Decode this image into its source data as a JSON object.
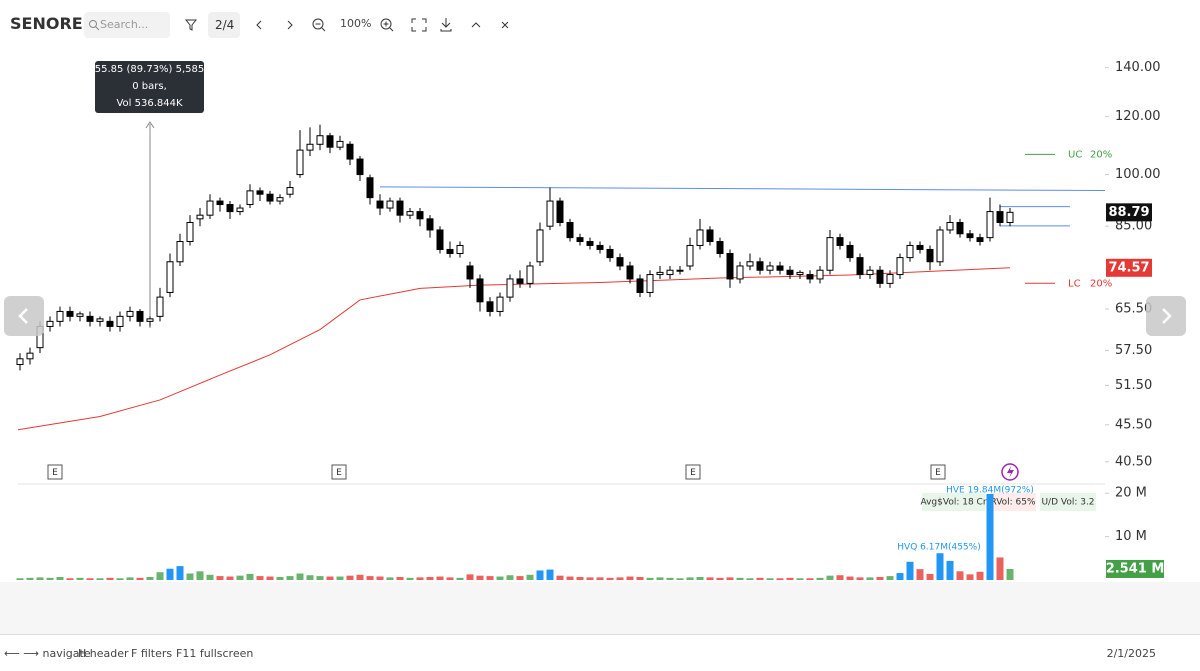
{
  "toolbar": {
    "title": "SENORES",
    "search_placeholder": "Search...",
    "page": "2/4",
    "zoom": "100%"
  },
  "chart_data": {
    "type": "candlestick",
    "log_scale": true,
    "ylim": [
      38,
      148
    ],
    "yticks": [
      {
        "value": 140,
        "label": "140.00"
      },
      {
        "value": 120,
        "label": "120.00"
      },
      {
        "value": 100,
        "label": "100.00"
      },
      {
        "value": 85,
        "label": "85.00"
      },
      {
        "value": 65.5,
        "label": "65.50"
      },
      {
        "value": 57.5,
        "label": "57.50"
      },
      {
        "value": 51.5,
        "label": "51.50"
      },
      {
        "value": 45.5,
        "label": "45.50"
      },
      {
        "value": 40.5,
        "label": "40.50"
      }
    ],
    "up_color": "#000000",
    "down_color": "#000000",
    "candles": [
      [
        55,
        57,
        54,
        56
      ],
      [
        56,
        58,
        55,
        57
      ],
      [
        58,
        63,
        57,
        62
      ],
      [
        62,
        64,
        61,
        63
      ],
      [
        63,
        66,
        62,
        65
      ],
      [
        65,
        66,
        63,
        64
      ],
      [
        64,
        65,
        63,
        64.5
      ],
      [
        64,
        65,
        62,
        63
      ],
      [
        63,
        64,
        62,
        63.5
      ],
      [
        63,
        64,
        61,
        62
      ],
      [
        62,
        65,
        61,
        64
      ],
      [
        64,
        66,
        63,
        65
      ],
      [
        65,
        65.5,
        62,
        63
      ],
      [
        63,
        64,
        62,
        63.5
      ],
      [
        64,
        70,
        63,
        68
      ],
      [
        69,
        78,
        68,
        76
      ],
      [
        76,
        83,
        75,
        81
      ],
      [
        81,
        88,
        80,
        86
      ],
      [
        87,
        90,
        85,
        88
      ],
      [
        88,
        94,
        87,
        92
      ],
      [
        92,
        93,
        89,
        91
      ],
      [
        91,
        92,
        87,
        89
      ],
      [
        89,
        91,
        88,
        90
      ],
      [
        91,
        97,
        90,
        95
      ],
      [
        95,
        96,
        92,
        94
      ],
      [
        94,
        95,
        91,
        92
      ],
      [
        92,
        94,
        91,
        93
      ],
      [
        94,
        98,
        93,
        96
      ],
      [
        100,
        115,
        99,
        108
      ],
      [
        108,
        116,
        106,
        110
      ],
      [
        110,
        117,
        108,
        113
      ],
      [
        113,
        114,
        107,
        109
      ],
      [
        109,
        113,
        108,
        111
      ],
      [
        110,
        111,
        103,
        105
      ],
      [
        105,
        106,
        98,
        100
      ],
      [
        99,
        100,
        91,
        93
      ],
      [
        92,
        94,
        88,
        90
      ],
      [
        90,
        93,
        89,
        92
      ],
      [
        92,
        93,
        86,
        88
      ],
      [
        88,
        90,
        87,
        89
      ],
      [
        89,
        90,
        85,
        87
      ],
      [
        87,
        88,
        82,
        84
      ],
      [
        84,
        85,
        78,
        79
      ],
      [
        79,
        81,
        77,
        78
      ],
      [
        78,
        81,
        77,
        80
      ],
      [
        75,
        76,
        70,
        72
      ],
      [
        72,
        73,
        65,
        67
      ],
      [
        67,
        68,
        64,
        65
      ],
      [
        65,
        69,
        64,
        68
      ],
      [
        68,
        73,
        67,
        72
      ],
      [
        72,
        74,
        70,
        71
      ],
      [
        71,
        76,
        70,
        75
      ],
      [
        76,
        86,
        75,
        84
      ],
      [
        85,
        96,
        84,
        92
      ],
      [
        92,
        93,
        85,
        86
      ],
      [
        86,
        87,
        81,
        82
      ],
      [
        82,
        83,
        80,
        81
      ],
      [
        81,
        82,
        79,
        80
      ],
      [
        80,
        81,
        78,
        79
      ],
      [
        79,
        80,
        76,
        77
      ],
      [
        77,
        78,
        74,
        75
      ],
      [
        75,
        76,
        71,
        72
      ],
      [
        72,
        73,
        68,
        69
      ],
      [
        69,
        74,
        68,
        73
      ],
      [
        73,
        75,
        72,
        73.5
      ],
      [
        73,
        75,
        72,
        74
      ],
      [
        74,
        75,
        73,
        74
      ],
      [
        75,
        82,
        74,
        80
      ],
      [
        80,
        87,
        79,
        84
      ],
      [
        84,
        85,
        80,
        81
      ],
      [
        81,
        82,
        77,
        78
      ],
      [
        78,
        79,
        70,
        72
      ],
      [
        72,
        76,
        71,
        75
      ],
      [
        75,
        78,
        74,
        76
      ],
      [
        76,
        77,
        73,
        74
      ],
      [
        74,
        76,
        73,
        75
      ],
      [
        75,
        76,
        73,
        74
      ],
      [
        74,
        75,
        72,
        73
      ],
      [
        73,
        74,
        72,
        73.5
      ],
      [
        73,
        74,
        71,
        72
      ],
      [
        72,
        75,
        71,
        74
      ],
      [
        74,
        84,
        73,
        82
      ],
      [
        82,
        83,
        79,
        80
      ],
      [
        80,
        81,
        76,
        77
      ],
      [
        77,
        78,
        72,
        73
      ],
      [
        73,
        75,
        72,
        74
      ],
      [
        74,
        75,
        70,
        71
      ],
      [
        71,
        74,
        70,
        73
      ],
      [
        73,
        78,
        72,
        77
      ],
      [
        77,
        81,
        76,
        80
      ],
      [
        80,
        81,
        78,
        79
      ],
      [
        79,
        80,
        74,
        76
      ],
      [
        76,
        85,
        75,
        84
      ],
      [
        84,
        88,
        83,
        86
      ],
      [
        86,
        87,
        82,
        83
      ],
      [
        83,
        84,
        81,
        82
      ],
      [
        82,
        83,
        80,
        81
      ],
      [
        82,
        93,
        81,
        89
      ],
      [
        89,
        91,
        85,
        86
      ],
      [
        86,
        90,
        85,
        88.79
      ]
    ],
    "ma": {
      "color": "#e53935",
      "x": [
        -0.2,
        8,
        14,
        20,
        25,
        30,
        34,
        40,
        46,
        58,
        70,
        83,
        99
      ],
      "values": [
        44.8,
        46.7,
        49.2,
        53.2,
        56.7,
        61.4,
        67.4,
        69.9,
        70.6,
        71.2,
        72.2,
        72.9,
        74.57
      ]
    },
    "trendline": {
      "color": "#5b8def",
      "x": [
        36,
        108.5
      ],
      "values": [
        96.2,
        95.1
      ]
    },
    "levels": [
      90.4,
      85.1
    ],
    "upper_circuit": {
      "label": "UC",
      "pct": "20%",
      "value": 106.55,
      "color": "#43a047"
    },
    "lower_circuit": {
      "label": "LC",
      "pct": "20%",
      "value": 71.03,
      "color": "#e53935"
    },
    "last_price": 88.79,
    "ma_price": 74.57,
    "earnings": {
      "x": [
        3.5,
        31.9,
        67.3,
        91.8
      ],
      "labels": [
        "E",
        "E",
        "E",
        "E"
      ]
    },
    "tooltip": {
      "lines": [
        "55.85 (89.73%) 5,585",
        "0 bars,",
        "Vol 536.844K"
      ]
    },
    "volume": {
      "ylim": [
        0,
        21.9
      ],
      "yticks": [
        {
          "value": 20,
          "label": "20 M"
        },
        {
          "value": 10,
          "label": "10 M"
        }
      ],
      "values": [
        0.4,
        0.5,
        0.6,
        0.5,
        0.7,
        0.4,
        0.5,
        0.4,
        0.4,
        0.5,
        0.4,
        0.6,
        0.5,
        0.7,
        1.8,
        2.6,
        3.2,
        1.5,
        2.0,
        1.2,
        0.9,
        0.8,
        1.0,
        1.4,
        0.9,
        0.8,
        0.7,
        0.9,
        1.5,
        1.1,
        0.9,
        0.8,
        0.8,
        1.0,
        1.2,
        0.9,
        0.8,
        0.6,
        0.7,
        0.5,
        0.6,
        0.7,
        0.8,
        0.6,
        0.5,
        1.3,
        1.0,
        0.9,
        0.8,
        1.1,
        0.9,
        1.2,
        2.2,
        2.4,
        1.0,
        0.8,
        0.7,
        0.6,
        0.6,
        0.5,
        0.6,
        0.8,
        0.7,
        0.5,
        0.6,
        0.5,
        0.4,
        0.6,
        0.7,
        0.6,
        0.5,
        0.6,
        0.5,
        0.4,
        0.5,
        0.4,
        0.4,
        0.5,
        0.4,
        0.4,
        0.5,
        1.0,
        1.1,
        0.8,
        0.6,
        0.6,
        0.7,
        0.9,
        1.6,
        4.2,
        2.5,
        1.4,
        6.17,
        4.4,
        2.0,
        1.3,
        1.9,
        19.84,
        5.2,
        2.541
      ],
      "up_color": "#43a047",
      "down_color": "#e53935",
      "highlight_color": "#2196f3",
      "highlight": [
        15,
        16,
        52,
        53,
        88,
        89,
        92,
        93,
        97
      ],
      "last": {
        "value": 2.541,
        "label": "2.541 M"
      },
      "hve_label": "HVE 19.84M(972%)",
      "hvq_label": "HVQ 6.17M(455%)",
      "avg_vol": "Avg$Vol: 18 Cr",
      "rvol": "RVol: 65%",
      "ud_vol": "U/D Vol: 3.2"
    }
  },
  "footer": {
    "hints": [
      "⟵ ⟶ navigate",
      "H header",
      "F filters",
      "F11 fullscreen"
    ],
    "date": "2/1/2025"
  }
}
